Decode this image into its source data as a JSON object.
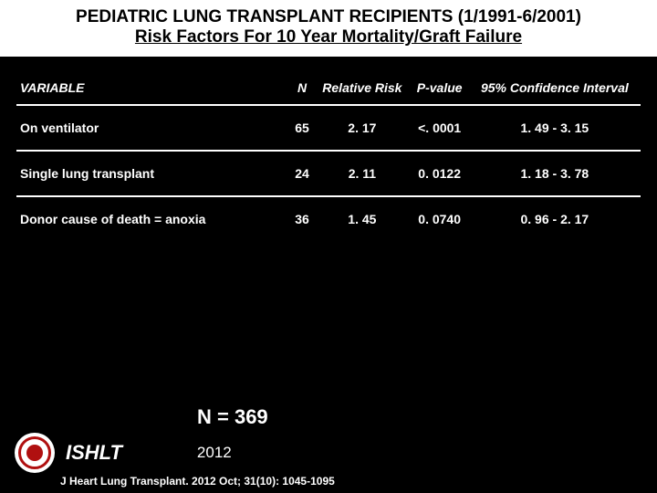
{
  "header": {
    "line1": "PEDIATRIC LUNG TRANSPLANT RECIPIENTS (1/1991-6/2001)",
    "line2": "Risk Factors For 10 Year Mortality/Graft Failure"
  },
  "table": {
    "columns": {
      "variable": "VARIABLE",
      "n": "N",
      "rr": "Relative Risk",
      "pvalue": "P-value",
      "ci": "95% Confidence Interval"
    },
    "rows": [
      {
        "variable": "On ventilator",
        "n": "65",
        "rr": "2. 17",
        "pvalue": "<. 0001",
        "ci": "1. 49 -  3. 15",
        "underlined": true
      },
      {
        "variable": "Single lung transplant",
        "n": "24",
        "rr": "2. 11",
        "pvalue": "0. 0122",
        "ci": "1. 18 -  3. 78",
        "underlined": true
      },
      {
        "variable": "Donor cause of death = anoxia",
        "n": "36",
        "rr": "1. 45",
        "pvalue": "0. 0740",
        "ci": "0. 96 -  2. 17",
        "underlined": false
      }
    ]
  },
  "footer": {
    "n_total": "N = 369",
    "org": "ISHLT",
    "year": "2012",
    "citation": "J Heart Lung Transplant.  2012 Oct; 31(10): 1045-1095"
  },
  "colors": {
    "background": "#000000",
    "header_bg": "#ffffff",
    "header_text": "#000000",
    "text": "#ffffff",
    "rule": "#ffffff",
    "logo_accent": "#b01010"
  },
  "fonts": {
    "title_size_pt": 19,
    "table_header_size_pt": 14,
    "table_cell_size_pt": 14,
    "n_total_size_pt": 22,
    "org_size_pt": 22,
    "year_size_pt": 17,
    "citation_size_pt": 12
  }
}
